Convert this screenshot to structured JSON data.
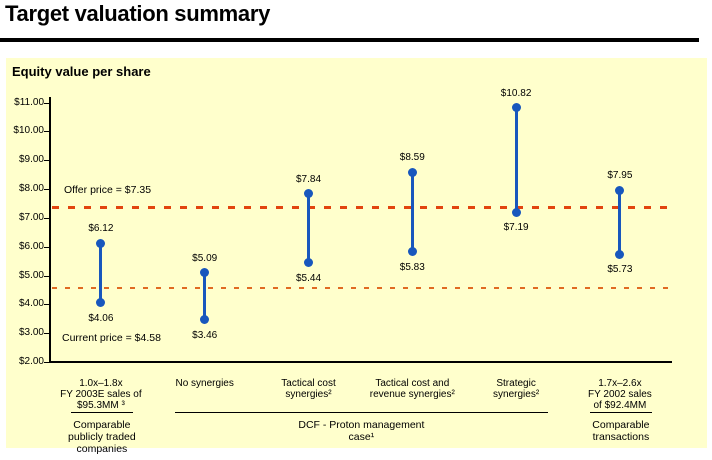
{
  "page": {
    "title": "Target valuation summary",
    "panel_heading": "Equity value per share"
  },
  "chart_data": {
    "type": "range-bar",
    "title": "Equity value per share",
    "ylabel": "Equity value per share ($)",
    "xlabel": "",
    "grid": false,
    "legend": false,
    "y_axis": {
      "min": 2,
      "max": 11,
      "tick_step": 1,
      "ticks": [
        {
          "value": 11,
          "label": "$11.00"
        },
        {
          "value": 10,
          "label": "$10.00"
        },
        {
          "value": 9,
          "label": "$9.00"
        },
        {
          "value": 8,
          "label": "$8.00"
        },
        {
          "value": 7,
          "label": "$7.00"
        },
        {
          "value": 6,
          "label": "$6.00"
        },
        {
          "value": 5,
          "label": "$5.00"
        },
        {
          "value": 4,
          "label": "$4.00"
        },
        {
          "value": 3,
          "label": "$3.00"
        },
        {
          "value": 2,
          "label": "$2.00"
        }
      ]
    },
    "categories": [
      {
        "label_lines": [
          "1.0x–1.8x",
          "FY 2003E sales of",
          "$95.3MM ³"
        ]
      },
      {
        "label_lines": [
          "No synergies"
        ]
      },
      {
        "label_lines": [
          "Tactical cost",
          "synergies²"
        ]
      },
      {
        "label_lines": [
          "Tactical cost and",
          "revenue synergies²"
        ]
      },
      {
        "label_lines": [
          "Strategic",
          "synergies²"
        ]
      },
      {
        "label_lines": [
          "1.7x–2.6x",
          "FY 2002 sales",
          "of $92.4MM"
        ]
      }
    ],
    "ranges": [
      {
        "low": 4.06,
        "high": 6.12,
        "low_label": "$4.06",
        "high_label": "$6.12"
      },
      {
        "low": 3.46,
        "high": 5.09,
        "low_label": "$3.46",
        "high_label": "$5.09"
      },
      {
        "low": 5.44,
        "high": 7.84,
        "low_label": "$5.44",
        "high_label": "$7.84"
      },
      {
        "low": 5.83,
        "high": 8.59,
        "low_label": "$5.83",
        "high_label": "$8.59"
      },
      {
        "low": 7.19,
        "high": 10.82,
        "low_label": "$7.19",
        "high_label": "$10.82"
      },
      {
        "low": 5.73,
        "high": 7.95,
        "low_label": "$5.73",
        "high_label": "$7.95"
      }
    ],
    "reference_lines": [
      {
        "name": "offer-price",
        "value": 7.35,
        "label": "Offer price = $7.35",
        "color": "#e2440f",
        "style": "dashed"
      },
      {
        "name": "current-price",
        "value": 4.58,
        "label": "Current price = $4.58",
        "color": "#e06a22",
        "style": "dashed"
      }
    ],
    "groups": [
      {
        "label_lines": [
          "Comparable",
          "publicly traded",
          "companies"
        ],
        "span": [
          0,
          0
        ]
      },
      {
        "label_lines": [
          "DCF - Proton management case¹"
        ],
        "span": [
          1,
          4
        ]
      },
      {
        "label_lines": [
          "Comparable",
          "transactions"
        ],
        "span": [
          5,
          5
        ]
      }
    ],
    "colors": {
      "bar": "#1857bd",
      "panel_bg": "#ffffcc",
      "axis": "#000000"
    }
  }
}
